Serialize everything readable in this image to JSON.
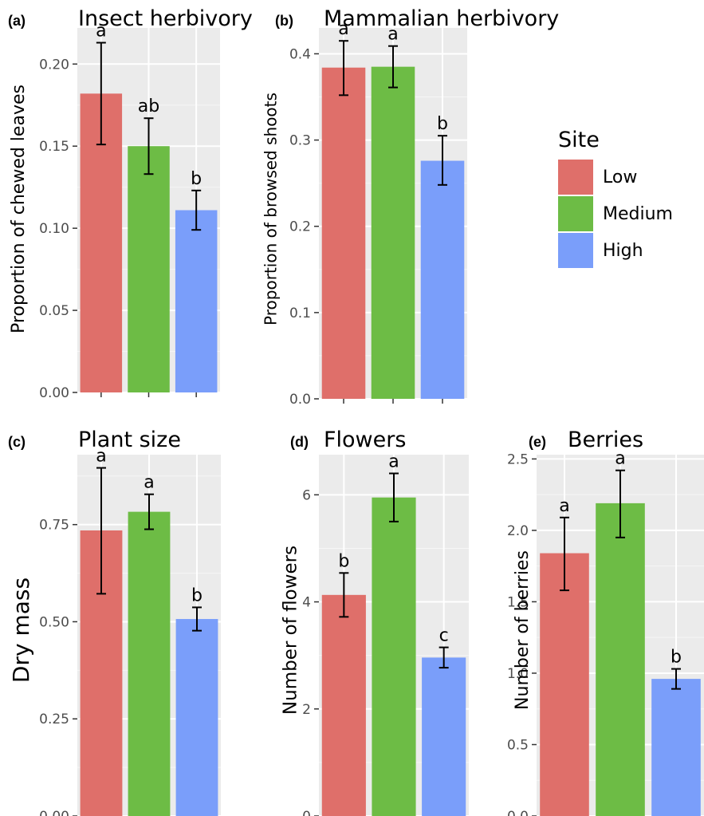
{
  "legend": {
    "title": "Site",
    "items": [
      {
        "label": "Low",
        "color": "#DF6F6A"
      },
      {
        "label": "Medium",
        "color": "#6DBC45"
      },
      {
        "label": "High",
        "color": "#7A9EFA"
      }
    ]
  },
  "chart_data": [
    {
      "type": "bar",
      "panel_tag": "(a)",
      "title": "Insect herbivory",
      "xlabel": "",
      "ylabel": "Proportion of chewed leaves",
      "categories": [
        "Low",
        "Medium",
        "High"
      ],
      "values": [
        0.182,
        0.15,
        0.111
      ],
      "error_low": [
        0.151,
        0.133,
        0.099
      ],
      "error_high": [
        0.213,
        0.167,
        0.123
      ],
      "letters": [
        "a",
        "ab",
        "b"
      ],
      "ylim": [
        0,
        0.222
      ],
      "yticks": [
        0.0,
        0.05,
        0.1,
        0.15,
        0.2
      ],
      "ytick_labels": [
        "0.00",
        "0.05",
        "0.10",
        "0.15",
        "0.20"
      ],
      "grid": true
    },
    {
      "type": "bar",
      "panel_tag": "(b)",
      "title": "Mammalian herbivory",
      "xlabel": "",
      "ylabel": "Proportion of browsed shoots",
      "categories": [
        "Low",
        "Medium",
        "High"
      ],
      "values": [
        0.384,
        0.385,
        0.276
      ],
      "error_low": [
        0.352,
        0.361,
        0.248
      ],
      "error_high": [
        0.415,
        0.409,
        0.305
      ],
      "letters": [
        "a",
        "a",
        "b"
      ],
      "ylim": [
        0,
        0.43
      ],
      "yticks": [
        0.0,
        0.1,
        0.2,
        0.3,
        0.4
      ],
      "ytick_labels": [
        "0.0",
        "0.1",
        "0.2",
        "0.3",
        "0.4"
      ],
      "grid": true
    },
    {
      "type": "bar",
      "panel_tag": "(c)",
      "title": "Plant size",
      "xlabel": "",
      "ylabel": "Dry mass",
      "categories": [
        "Low",
        "Medium",
        "High"
      ],
      "values": [
        0.735,
        0.783,
        0.507
      ],
      "error_low": [
        0.572,
        0.738,
        0.477
      ],
      "error_high": [
        0.896,
        0.828,
        0.537
      ],
      "letters": [
        "a",
        "a",
        "b"
      ],
      "ylim": [
        0,
        0.93
      ],
      "yticks": [
        0.0,
        0.25,
        0.5,
        0.75
      ],
      "ytick_labels": [
        "0.00",
        "0.25",
        "0.50",
        "0.75"
      ],
      "grid": true
    },
    {
      "type": "bar",
      "panel_tag": "(d)",
      "title": "Flowers",
      "xlabel": "",
      "ylabel": "Number of flowers",
      "categories": [
        "Low",
        "Medium",
        "High"
      ],
      "values": [
        4.13,
        5.95,
        2.96
      ],
      "error_low": [
        3.72,
        5.5,
        2.77
      ],
      "error_high": [
        4.54,
        6.4,
        3.15
      ],
      "letters": [
        "b",
        "a",
        "c"
      ],
      "ylim": [
        0,
        6.75
      ],
      "yticks": [
        0,
        2,
        4,
        6
      ],
      "ytick_labels": [
        "0",
        "2",
        "4",
        "6"
      ],
      "grid": true
    },
    {
      "type": "bar",
      "panel_tag": "(e)",
      "title": "Berries",
      "xlabel": "",
      "ylabel": "Number of berries",
      "categories": [
        "Low",
        "Medium",
        "High"
      ],
      "values": [
        1.84,
        2.19,
        0.96
      ],
      "error_low": [
        1.58,
        1.95,
        0.89
      ],
      "error_high": [
        2.09,
        2.42,
        1.03
      ],
      "letters": [
        "a",
        "a",
        "b"
      ],
      "ylim": [
        0,
        2.53
      ],
      "yticks": [
        0.0,
        0.5,
        1.0,
        1.5,
        2.0,
        2.5
      ],
      "ytick_labels": [
        "0.0",
        "0.5",
        "1.0",
        "1.5",
        "2.0",
        "2.5"
      ],
      "grid": true
    }
  ]
}
